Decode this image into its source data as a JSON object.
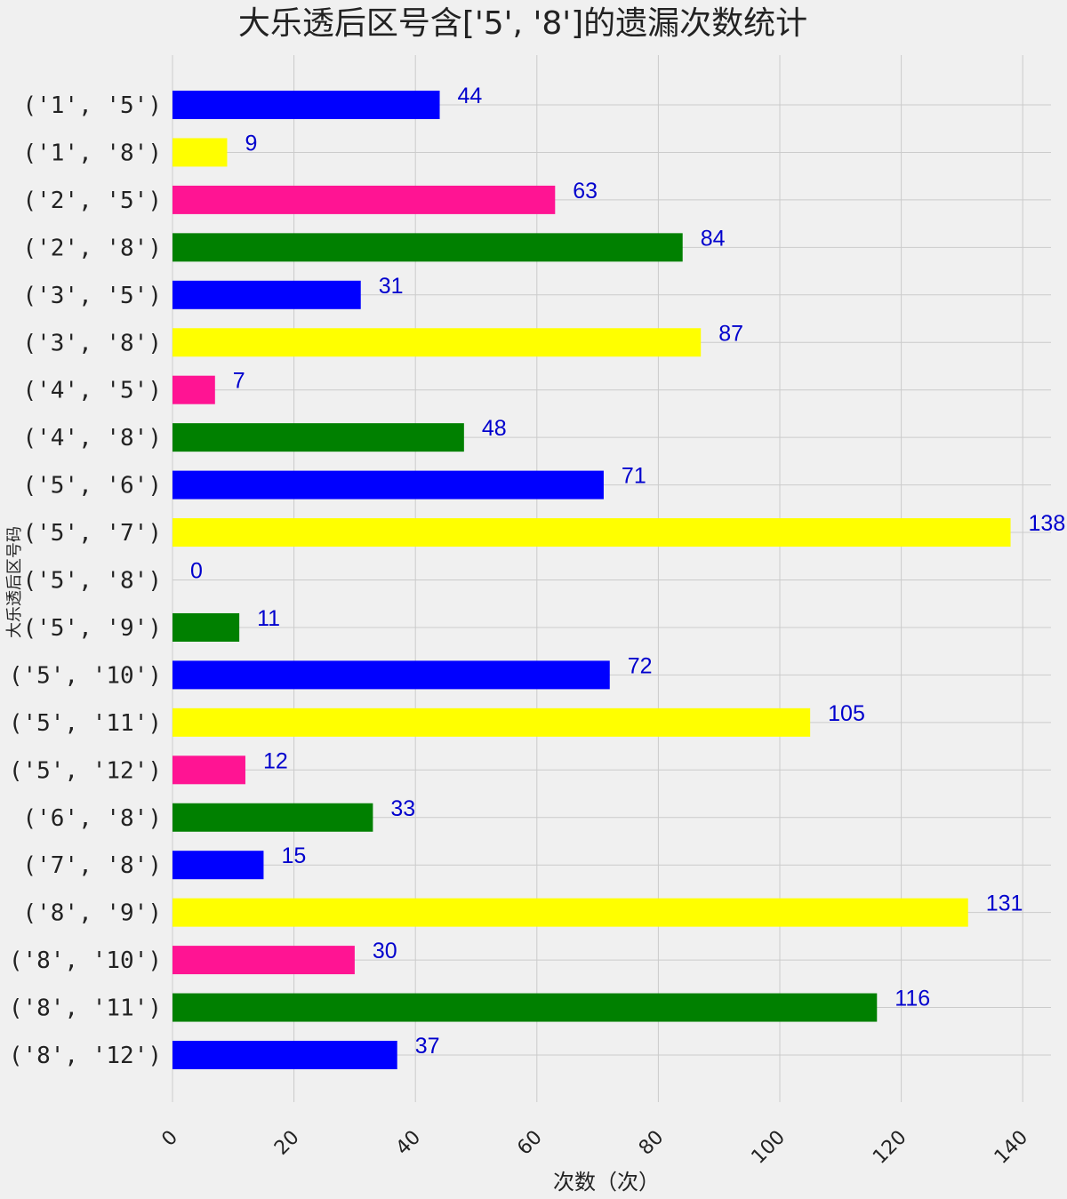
{
  "chart_data": {
    "type": "bar",
    "orientation": "horizontal",
    "title": "大乐透后区号含['5', '8']的遗漏次数统计",
    "xlabel": "次数（次）",
    "ylabel": "大乐透后区号码",
    "xlim": [
      0,
      145
    ],
    "xticks": [
      0,
      20,
      40,
      60,
      80,
      100,
      120,
      140
    ],
    "grid": true,
    "categories": [
      "('1', '5')",
      "('1', '8')",
      "('2', '5')",
      "('2', '8')",
      "('3', '5')",
      "('3', '8')",
      "('4', '5')",
      "('4', '8')",
      "('5', '6')",
      "('5', '7')",
      "('5', '8')",
      "('5', '9')",
      "('5', '10')",
      "('5', '11')",
      "('5', '12')",
      "('6', '8')",
      "('7', '8')",
      "('8', '9')",
      "('8', '10')",
      "('8', '11')",
      "('8', '12')"
    ],
    "values": [
      44,
      9,
      63,
      84,
      31,
      87,
      7,
      48,
      71,
      138,
      0,
      11,
      72,
      105,
      12,
      33,
      15,
      131,
      30,
      116,
      37
    ],
    "bar_colors": [
      "#0000ff",
      "#ffff00",
      "#ff1493",
      "#008000"
    ],
    "label_color": "#0000cd",
    "background": "#f0f0f0"
  }
}
